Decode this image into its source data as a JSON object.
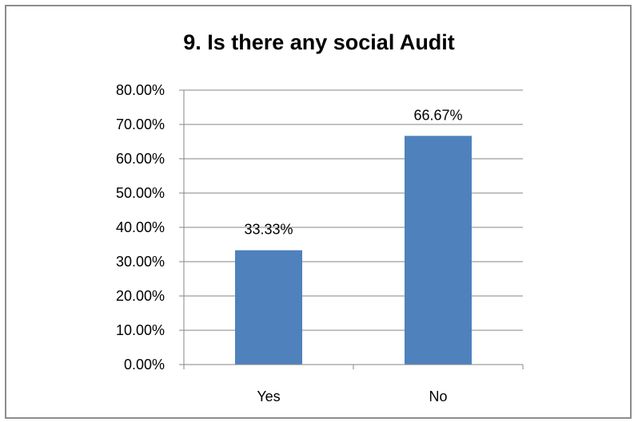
{
  "chart_data": {
    "type": "bar",
    "title": "9. Is there any social Audit",
    "categories": [
      "Yes",
      "No"
    ],
    "values": [
      33.33,
      66.67
    ],
    "data_labels": [
      "33.33%",
      "66.67%"
    ],
    "xlabel": "",
    "ylabel": "",
    "ylim": [
      0,
      80
    ],
    "yticks": [
      0,
      10,
      20,
      30,
      40,
      50,
      60,
      70,
      80
    ],
    "ytick_labels": [
      "0.00%",
      "10.00%",
      "20.00%",
      "30.00%",
      "40.00%",
      "50.00%",
      "60.00%",
      "70.00%",
      "80.00%"
    ],
    "grid": true,
    "legend": "none",
    "bar_color": "#4f81bd",
    "grid_color": "#868686"
  }
}
